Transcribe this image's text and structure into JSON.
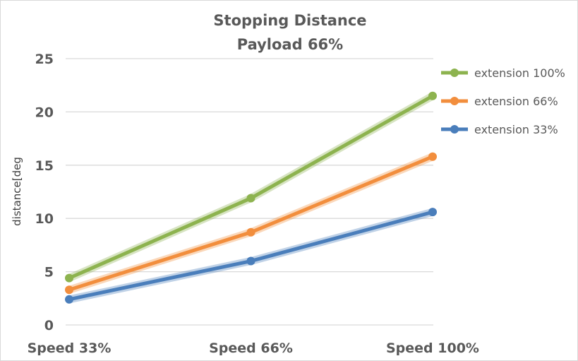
{
  "chart_data": {
    "type": "line",
    "title": [
      "Stopping Distance",
      "Payload 66%"
    ],
    "xlabel": "",
    "ylabel": "distance[deg",
    "categories": [
      "Speed 33%",
      "Speed 66%",
      "Speed 100%"
    ],
    "ylim": [
      0,
      25
    ],
    "yticks": [
      0,
      5,
      10,
      15,
      20,
      25
    ],
    "grid": true,
    "legend": "right",
    "series": [
      {
        "name": "extension 100%",
        "color": "#8db34f",
        "values": [
          4.4,
          11.9,
          21.5
        ]
      },
      {
        "name": "extension 66%",
        "color": "#f28e3d",
        "values": [
          3.3,
          8.7,
          15.8
        ]
      },
      {
        "name": "extension 33%",
        "color": "#4a7ebb",
        "values": [
          2.4,
          6.0,
          10.6
        ]
      }
    ]
  }
}
